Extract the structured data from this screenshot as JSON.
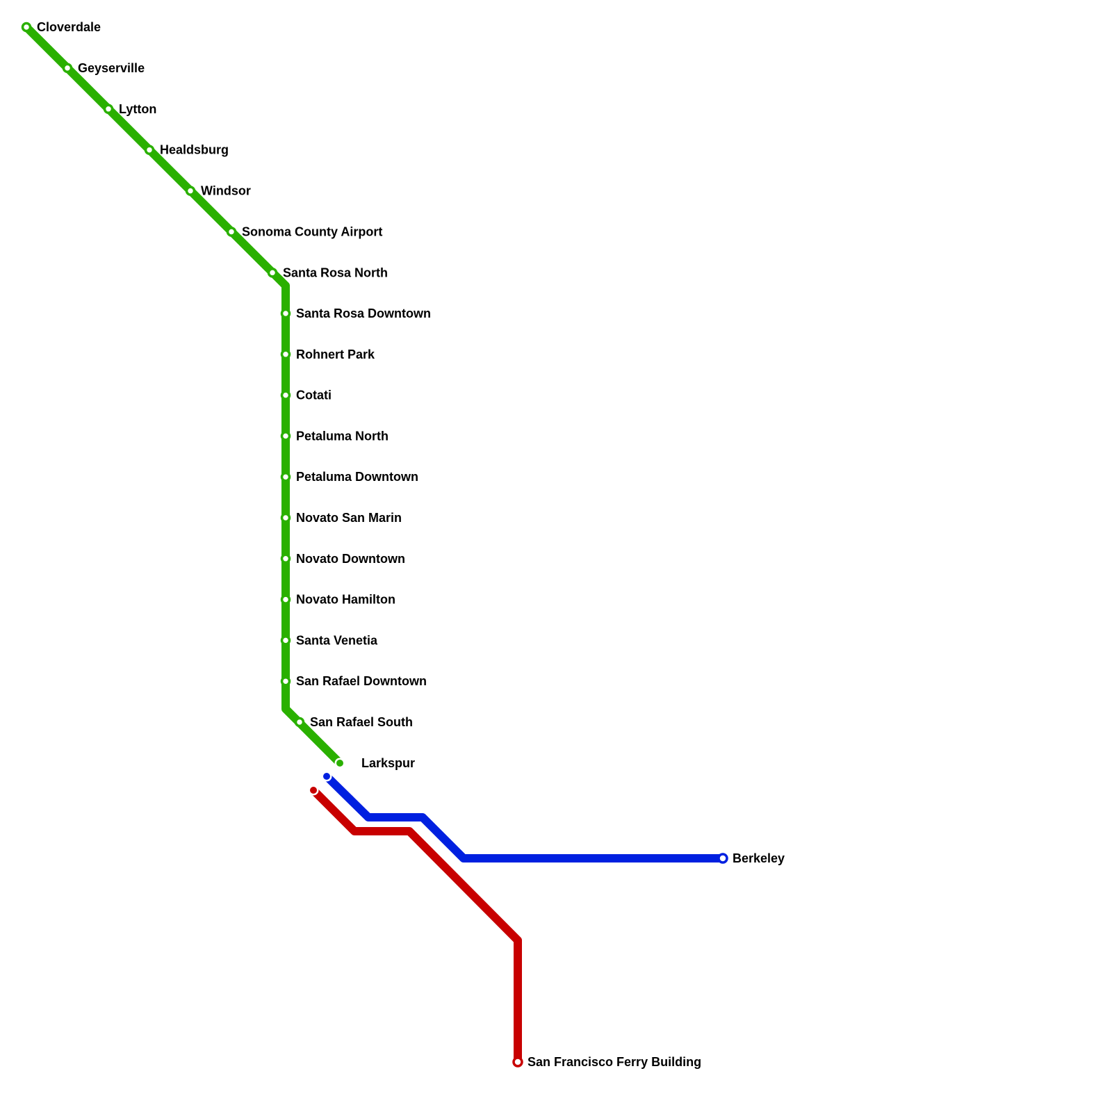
{
  "lines": [
    {
      "id": "green",
      "color": "#2ab000"
    },
    {
      "id": "blue",
      "color": "#0020e0"
    },
    {
      "id": "red",
      "color": "#c80000"
    }
  ],
  "stations": {
    "green": [
      "Cloverdale",
      "Geyserville",
      "Lytton",
      "Healdsburg",
      "Windsor",
      "Sonoma County Airport",
      "Santa Rosa North",
      "Santa Rosa Downtown",
      "Rohnert Park",
      "Cotati",
      "Petaluma North",
      "Petaluma Downtown",
      "Novato San Marin",
      "Novato Downtown",
      "Novato Hamilton",
      "Santa Venetia",
      "San Rafael Downtown",
      "San Rafael South"
    ],
    "hub": "Larkspur",
    "blue_terminus": "Berkeley",
    "red_terminus": "San Francisco Ferry Building"
  }
}
